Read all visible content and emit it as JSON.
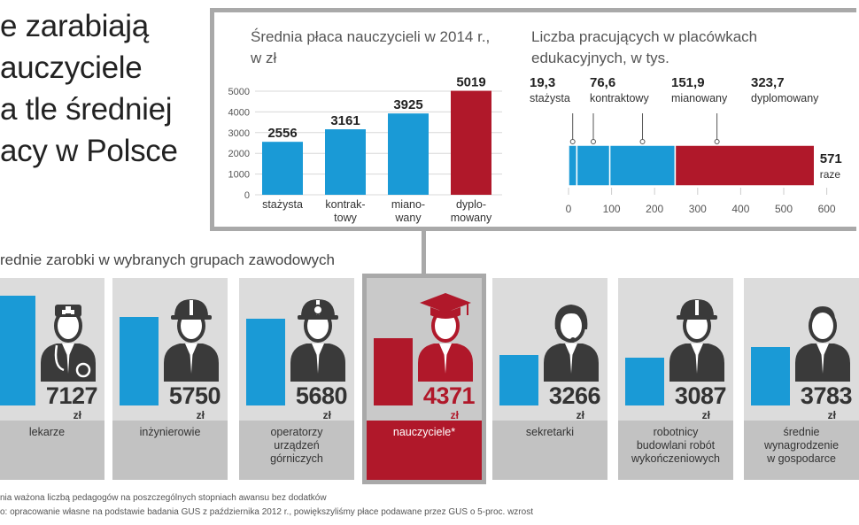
{
  "headline": "e zarabiają\nauczyciele\na tle średniej\nacy w Polsce",
  "left_chart_title": "Średnia płaca nauczycieli w 2014 r.,\nw zł",
  "right_chart_title": "Liczba pracujących w placówkach\nedukacyjnych, w tys.",
  "section_title": "rednie zarobki w wybranych grupach zawodowych",
  "footnote_1": "nia ważona liczbą pedagogów na poszczególnych stopniach awansu bez dodatków",
  "footnote_2": "o: opracowanie własne na podstawie badania GUS z października 2012 r., powiększyliśmy płace podawane przez GUS o 5-proc. wzrost",
  "colors": {
    "blue": "#1a9ad6",
    "red": "#b0182a",
    "gray": "#a9a9a9"
  },
  "chart_data": [
    {
      "type": "bar",
      "title": "Średnia płaca nauczycieli w 2014 r., w zł",
      "categories": [
        "stażysta",
        "kontrak-\ntowy",
        "miano-\nwany",
        "dyplo-\nmowany"
      ],
      "values": [
        2556,
        3161,
        3925,
        5019
      ],
      "value_labels": [
        "2556",
        "3161",
        "3925",
        "5019"
      ],
      "highlight_index": 3,
      "ylim": [
        0,
        5000
      ],
      "yticks": [
        0,
        1000,
        2000,
        3000,
        4000,
        5000
      ],
      "ytick_labels": [
        "0",
        "1000",
        "2000",
        "3000",
        "4000",
        "5000"
      ]
    },
    {
      "type": "bar",
      "orientation": "horizontal-stacked",
      "title": "Liczba pracujących w placówkach edukacyjnych, w tys.",
      "series": [
        {
          "name": "stażysta",
          "value": 19.3,
          "value_label": "19,3"
        },
        {
          "name": "kontraktowy",
          "value": 76.6,
          "value_label": "76,6"
        },
        {
          "name": "mianowany",
          "value": 151.9,
          "value_label": "151,9"
        },
        {
          "name": "dyplomowany",
          "value": 323.7,
          "value_label": "323,7"
        }
      ],
      "total_label": "571",
      "total_caption": "raze",
      "xlim": [
        0,
        600
      ],
      "xticks": [
        0,
        100,
        200,
        300,
        400,
        500,
        600
      ],
      "xtick_labels": [
        "0",
        "100",
        "200",
        "300",
        "400",
        "500",
        "600"
      ]
    },
    {
      "type": "bar",
      "title": "rednie zarobki w wybranych grupach zawodowych",
      "categories": [
        "lekarze",
        "inżynierowie",
        "operatorzy\nurządzeń\ngórniczych",
        "nauczyciele*",
        "sekretarki",
        "robotnicy\nbudowlani robót\nwykończeniowych",
        "średnie\nwynagrodzenie\nw gospodarce"
      ],
      "values": [
        7127,
        5750,
        5680,
        4371,
        3266,
        3087,
        3783
      ],
      "value_labels": [
        "7127",
        "5750",
        "5680",
        "4371",
        "3266",
        "3087",
        "3783"
      ],
      "unit": "zł",
      "icons": [
        "doctor-icon",
        "engineer-icon",
        "miner-icon",
        "graduate-icon",
        "secretary-icon",
        "builder-icon",
        "average-person-icon"
      ],
      "highlight_index": 3
    }
  ]
}
